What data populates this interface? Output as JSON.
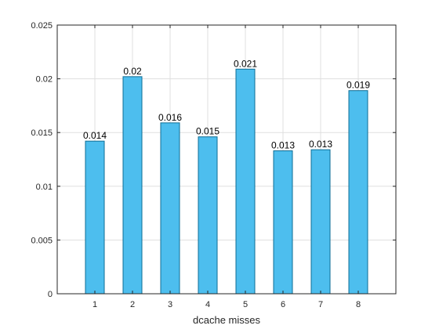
{
  "chart_data": {
    "type": "bar",
    "title": "",
    "xlabel": "dcache misses",
    "ylabel": "",
    "categories": [
      "1",
      "2",
      "3",
      "4",
      "5",
      "6",
      "7",
      "8"
    ],
    "values": [
      0.0142,
      0.0202,
      0.0159,
      0.0146,
      0.0209,
      0.0133,
      0.0134,
      0.0189
    ],
    "data_labels": [
      "0.014",
      "0.02",
      "0.016",
      "0.015",
      "0.021",
      "0.013",
      "0.013",
      "0.019"
    ],
    "ylim": [
      0,
      0.025
    ],
    "yticks": [
      0,
      0.005,
      0.01,
      0.015,
      0.02,
      0.025
    ],
    "ytick_labels": [
      "0",
      "0.005",
      "0.01",
      "0.015",
      "0.02",
      "0.025"
    ],
    "grid": true,
    "legend": "none",
    "colors": {
      "bar_fill": "#4dbeee",
      "bar_edge": "#0e6d95",
      "grid": "#dfdfdf",
      "axis": "#262626"
    }
  }
}
